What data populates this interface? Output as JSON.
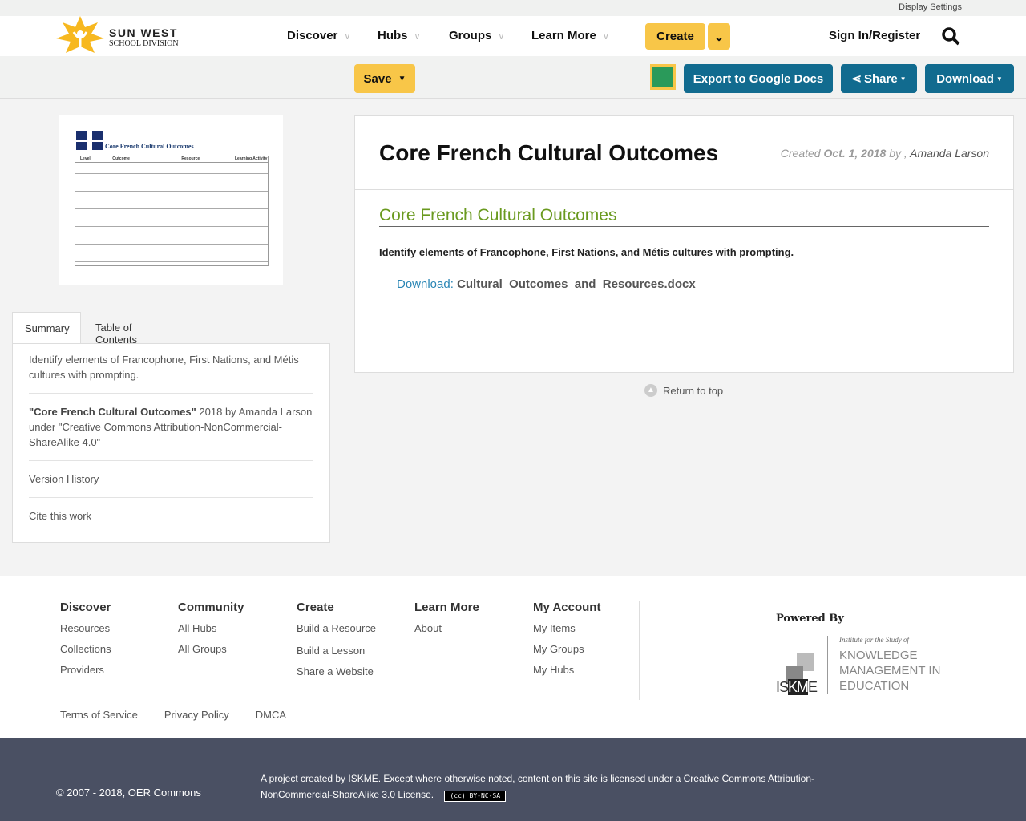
{
  "topbar": {
    "display_settings": "Display Settings"
  },
  "logo": {
    "line1": "SUN WEST",
    "line2": "SCHOOL DIVISION"
  },
  "nav": {
    "items": [
      "Discover",
      "Hubs",
      "Groups",
      "Learn More"
    ],
    "create": "Create",
    "sign_in": "Sign In/Register"
  },
  "toolbar": {
    "save": "Save",
    "export": "Export to Google Docs",
    "share": "Share",
    "download": "Download"
  },
  "thumbnail": {
    "title": "Core French Cultural Outcomes",
    "headers": [
      "Level",
      "Outcome",
      "Resource",
      "Learning Activity"
    ]
  },
  "tabs": [
    "Summary",
    "Table of Contents"
  ],
  "summary": {
    "description": "Identify elements of Francophone, First Nations, and Métis cultures with prompting.",
    "cite_title": "\"Core French Cultural Outcomes\"",
    "cite_rest": " 2018 by Amanda Larson under \"Creative Commons Attribution-NonCommercial-ShareAlike 4.0\"",
    "version_history": "Version History",
    "cite": "Cite this work"
  },
  "resource": {
    "title": "Core French Cultural Outcomes",
    "created_label": "Created",
    "date": "Oct. 1, 2018",
    "by": "by ,",
    "author": "Amanda Larson",
    "section_title": "Core French Cultural Outcomes",
    "description": "Identify elements of Francophone, First Nations, and Métis cultures with prompting.",
    "download_label": "Download:",
    "file": "Cultural_Outcomes_and_Resources.docx"
  },
  "return_top": "Return to top",
  "footer": {
    "columns": [
      {
        "title": "Discover",
        "links": [
          "Resources",
          "Collections",
          "Providers"
        ]
      },
      {
        "title": "Community",
        "links": [
          "All Hubs",
          "All Groups"
        ]
      },
      {
        "title": "Create",
        "links": [
          "Build a Resource",
          "Build a Lesson",
          "Share a Website"
        ]
      },
      {
        "title": "Learn More",
        "links": [
          "About"
        ]
      },
      {
        "title": "My Account",
        "links": [
          "My Items",
          "My Groups",
          "My Hubs"
        ]
      }
    ],
    "legal": [
      "Terms of Service",
      "Privacy Policy",
      "DMCA"
    ],
    "powered_by": "Powered By",
    "iskme": {
      "tag": "Institute for the Study of",
      "l1": "KNOWLEDGE",
      "l2": "MANAGEMENT IN",
      "l3": "EDUCATION",
      "mark": "ISKME"
    }
  },
  "bottom": {
    "copyright": "© 2007 - 2018, OER Commons",
    "license": "A project created by ISKME. Except where otherwise noted, content on this site is licensed under a Creative Commons Attribution-NonCommercial-ShareAlike 3.0 License.",
    "badge": "BY-NC-SA"
  },
  "colors": {
    "accent_yellow": "#f8c648",
    "accent_blue": "#116b8f",
    "title_green": "#6a9a1f",
    "link_blue": "#2a86b5",
    "footer_bg": "#4a5063"
  }
}
